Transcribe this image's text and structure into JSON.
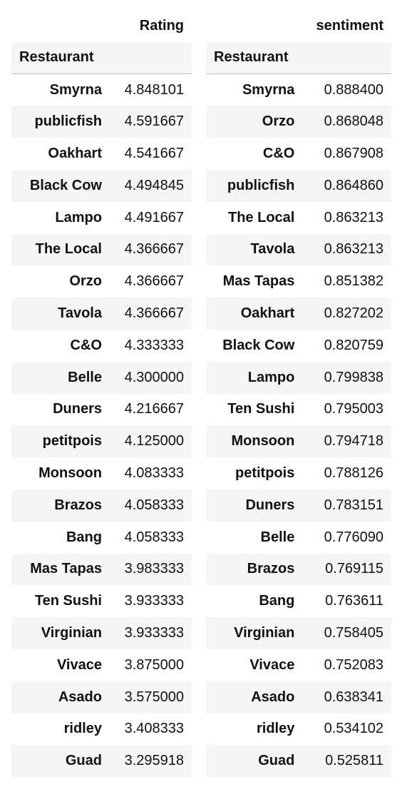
{
  "left_table": {
    "column_header": "Rating",
    "index_name": "Restaurant",
    "rows": [
      {
        "name": "Smyrna",
        "value": "4.848101"
      },
      {
        "name": "publicfish",
        "value": "4.591667"
      },
      {
        "name": "Oakhart",
        "value": "4.541667"
      },
      {
        "name": "Black Cow",
        "value": "4.494845"
      },
      {
        "name": "Lampo",
        "value": "4.491667"
      },
      {
        "name": "The Local",
        "value": "4.366667"
      },
      {
        "name": "Orzo",
        "value": "4.366667"
      },
      {
        "name": "Tavola",
        "value": "4.366667"
      },
      {
        "name": "C&O",
        "value": "4.333333"
      },
      {
        "name": "Belle",
        "value": "4.300000"
      },
      {
        "name": "Duners",
        "value": "4.216667"
      },
      {
        "name": "petitpois",
        "value": "4.125000"
      },
      {
        "name": "Monsoon",
        "value": "4.083333"
      },
      {
        "name": "Brazos",
        "value": "4.058333"
      },
      {
        "name": "Bang",
        "value": "4.058333"
      },
      {
        "name": "Mas Tapas",
        "value": "3.983333"
      },
      {
        "name": "Ten Sushi",
        "value": "3.933333"
      },
      {
        "name": "Virginian",
        "value": "3.933333"
      },
      {
        "name": "Vivace",
        "value": "3.875000"
      },
      {
        "name": "Asado",
        "value": "3.575000"
      },
      {
        "name": "ridley",
        "value": "3.408333"
      },
      {
        "name": "Guad",
        "value": "3.295918"
      }
    ]
  },
  "right_table": {
    "column_header": "sentiment",
    "index_name": "Restaurant",
    "rows": [
      {
        "name": "Smyrna",
        "value": "0.888400"
      },
      {
        "name": "Orzo",
        "value": "0.868048"
      },
      {
        "name": "C&O",
        "value": "0.867908"
      },
      {
        "name": "publicfish",
        "value": "0.864860"
      },
      {
        "name": "The Local",
        "value": "0.863213"
      },
      {
        "name": "Tavola",
        "value": "0.863213"
      },
      {
        "name": "Mas Tapas",
        "value": "0.851382"
      },
      {
        "name": "Oakhart",
        "value": "0.827202"
      },
      {
        "name": "Black Cow",
        "value": "0.820759"
      },
      {
        "name": "Lampo",
        "value": "0.799838"
      },
      {
        "name": "Ten Sushi",
        "value": "0.795003"
      },
      {
        "name": "Monsoon",
        "value": "0.794718"
      },
      {
        "name": "petitpois",
        "value": "0.788126"
      },
      {
        "name": "Duners",
        "value": "0.783151"
      },
      {
        "name": "Belle",
        "value": "0.776090"
      },
      {
        "name": "Brazos",
        "value": "0.769115"
      },
      {
        "name": "Bang",
        "value": "0.763611"
      },
      {
        "name": "Virginian",
        "value": "0.758405"
      },
      {
        "name": "Vivace",
        "value": "0.752083"
      },
      {
        "name": "Asado",
        "value": "0.638341"
      },
      {
        "name": "ridley",
        "value": "0.534102"
      },
      {
        "name": "Guad",
        "value": "0.525811"
      }
    ]
  }
}
